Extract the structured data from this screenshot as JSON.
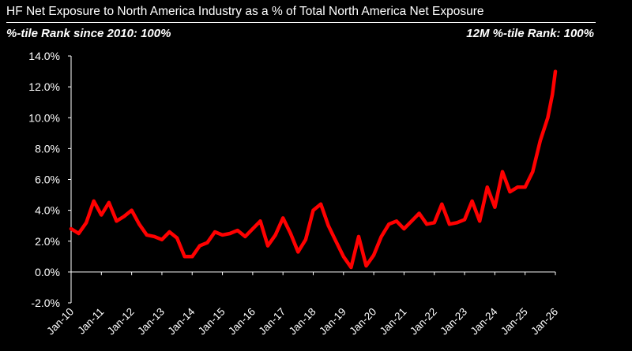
{
  "header": {
    "title": "HF Net Exposure to North America Industry as a % of Total North America Net Exposure",
    "left_note": "%-tile Rank since 2010: 100%",
    "right_note": "12M %-tile Rank: 100%"
  },
  "chart_data": {
    "type": "line",
    "title": "HF Net Exposure to North America Industry as a % of Total North America Net Exposure",
    "xlabel": "",
    "ylabel": "",
    "ylim": [
      -2.0,
      14.0
    ],
    "yticks": [
      "14.0%",
      "12.0%",
      "10.0%",
      "8.0%",
      "6.0%",
      "4.0%",
      "2.0%",
      "0.0%",
      "-2.0%"
    ],
    "ytick_values": [
      14,
      12,
      10,
      8,
      6,
      4,
      2,
      0,
      -2
    ],
    "xlim": [
      2010.0,
      2026.0
    ],
    "xticks": [
      "Jan-10",
      "Jan-11",
      "Jan-12",
      "Jan-13",
      "Jan-14",
      "Jan-15",
      "Jan-16",
      "Jan-17",
      "Jan-18",
      "Jan-19",
      "Jan-20",
      "Jan-21",
      "Jan-22",
      "Jan-23",
      "Jan-24",
      "Jan-25",
      "Jan-26"
    ],
    "xtick_values": [
      2010,
      2011,
      2012,
      2013,
      2014,
      2015,
      2016,
      2017,
      2018,
      2019,
      2020,
      2021,
      2022,
      2023,
      2024,
      2025,
      2026
    ],
    "grid": false,
    "series": [
      {
        "color": "#ff0000",
        "x": [
          2010.0,
          2010.25,
          2010.5,
          2010.75,
          2011.0,
          2011.25,
          2011.5,
          2011.75,
          2012.0,
          2012.25,
          2012.5,
          2012.75,
          2013.0,
          2013.25,
          2013.5,
          2013.75,
          2014.0,
          2014.25,
          2014.5,
          2014.75,
          2015.0,
          2015.25,
          2015.5,
          2015.75,
          2016.0,
          2016.25,
          2016.5,
          2016.75,
          2017.0,
          2017.25,
          2017.5,
          2017.75,
          2018.0,
          2018.25,
          2018.5,
          2018.75,
          2019.0,
          2019.25,
          2019.5,
          2019.75,
          2020.0,
          2020.25,
          2020.5,
          2020.75,
          2021.0,
          2021.25,
          2021.5,
          2021.75,
          2022.0,
          2022.25,
          2022.5,
          2022.75,
          2023.0,
          2023.25,
          2023.5,
          2023.75,
          2024.0,
          2024.25,
          2024.5,
          2024.75,
          2025.0,
          2025.25,
          2025.5,
          2025.75,
          2025.9,
          2026.0
        ],
        "y": [
          2.8,
          2.5,
          3.2,
          4.6,
          3.7,
          4.5,
          3.3,
          3.6,
          4.0,
          3.1,
          2.4,
          2.3,
          2.1,
          2.6,
          2.2,
          1.0,
          1.0,
          1.7,
          1.9,
          2.6,
          2.4,
          2.5,
          2.7,
          2.3,
          2.8,
          3.3,
          1.7,
          2.4,
          3.5,
          2.5,
          1.3,
          2.1,
          4.0,
          4.4,
          3.0,
          2.0,
          1.0,
          0.3,
          2.3,
          0.4,
          1.1,
          2.3,
          3.1,
          3.3,
          2.8,
          3.3,
          3.8,
          3.1,
          3.2,
          4.4,
          3.1,
          3.2,
          3.4,
          4.6,
          3.3,
          5.5,
          4.2,
          6.5,
          5.2,
          5.5,
          5.5,
          6.5,
          8.5,
          10.0,
          11.5,
          13.0
        ]
      }
    ]
  }
}
